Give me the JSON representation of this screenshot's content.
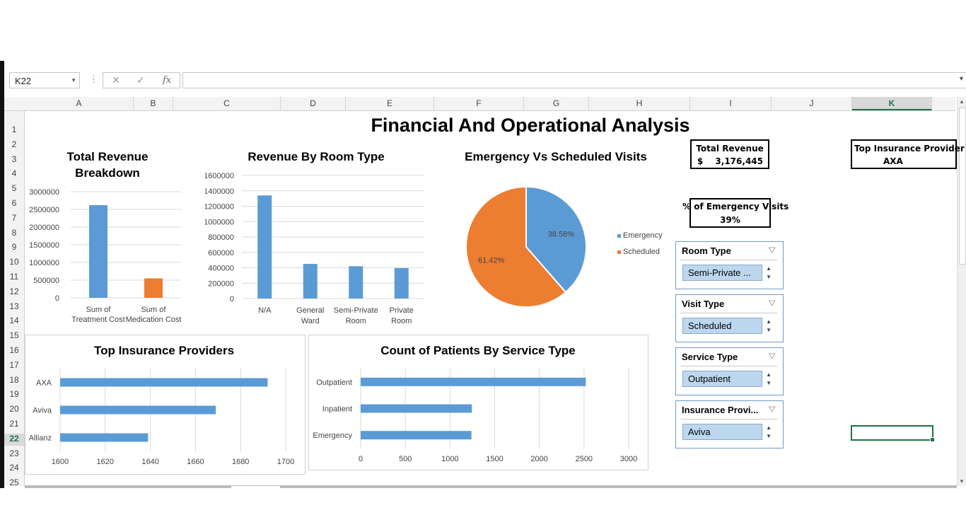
{
  "formula_bar": {
    "name_box": "K22",
    "separator": "⋮",
    "cancel_icon": "✕",
    "enter_icon": "✓",
    "fx_label": "fx",
    "formula_value": ""
  },
  "columns": [
    "A",
    "B",
    "C",
    "D",
    "E",
    "F",
    "G",
    "H",
    "I",
    "J",
    "K"
  ],
  "active_column": "K",
  "rows": [
    "1",
    "2",
    "3",
    "4",
    "5",
    "6",
    "7",
    "8",
    "9",
    "10",
    "11",
    "12",
    "13",
    "14",
    "15",
    "16",
    "17",
    "18",
    "19",
    "20",
    "21",
    "22",
    "23",
    "24",
    "25"
  ],
  "active_row": "22",
  "dashboard": {
    "title": "Financial And Operational Analysis"
  },
  "kpis": {
    "total_revenue_label": "Total Revenue",
    "total_revenue_currency": "$",
    "total_revenue_value": "3,176,445",
    "top_insurance_label": "Top Insurance Provider",
    "top_insurance_value": "AXA",
    "emergency_pct_label": "% of Emergency Visits",
    "emergency_pct_value": "39%"
  },
  "slicers": [
    {
      "title": "Room Type",
      "selected": "Semi-Private ..."
    },
    {
      "title": "Visit Type",
      "selected": "Scheduled"
    },
    {
      "title": "Service Type",
      "selected": "Outpatient"
    },
    {
      "title": "Insurance Provi...",
      "selected": "Aviva"
    }
  ],
  "colors": {
    "blue": "#5b9bd5",
    "orange": "#ed7d31",
    "selection_green": "#217346"
  },
  "chart_data": [
    {
      "type": "bar",
      "title_lines": [
        "Total Revenue",
        "Breakdown"
      ],
      "categories": [
        [
          "Sum of",
          "Treatment Cost"
        ],
        [
          "Sum of",
          "Medication Cost"
        ]
      ],
      "values": [
        2620000,
        550000
      ],
      "bar_colors": [
        "#5b9bd5",
        "#ed7d31"
      ],
      "ylim": [
        0,
        3000000
      ],
      "yticks": [
        "3000000",
        "2500000",
        "2000000",
        "1500000",
        "1000000",
        "500000",
        "0"
      ],
      "grid": true
    },
    {
      "type": "bar",
      "title": "Revenue By Room Type",
      "categories": [
        [
          "N/A"
        ],
        [
          "General",
          "Ward"
        ],
        [
          "Semi-Private",
          "Room"
        ],
        [
          "Private",
          "Room"
        ]
      ],
      "values": [
        1340000,
        450000,
        420000,
        395000
      ],
      "ylim": [
        0,
        1600000
      ],
      "yticks": [
        "1600000",
        "1400000",
        "1200000",
        "1000000",
        "800000",
        "600000",
        "400000",
        "200000",
        "0"
      ],
      "grid": true
    },
    {
      "type": "pie",
      "title": "Emergency Vs Scheduled Visits",
      "slices": [
        {
          "label": "Emergency",
          "value": 38.58,
          "text": "38.58%",
          "color": "#5b9bd5"
        },
        {
          "label": "Scheduled",
          "value": 61.42,
          "text": "61.42%",
          "color": "#ed7d31"
        }
      ],
      "legend": "right"
    },
    {
      "type": "bar",
      "orientation": "horizontal",
      "title": "Top Insurance Providers",
      "categories": [
        "AXA",
        "Aviva",
        "Allianz"
      ],
      "values": [
        1692,
        1669,
        1639
      ],
      "xlim": [
        1600,
        1700
      ],
      "xticks": [
        "1600",
        "1620",
        "1640",
        "1660",
        "1680",
        "1700"
      ],
      "grid": true
    },
    {
      "type": "bar",
      "orientation": "horizontal",
      "title": "Count of Patients By Service Type",
      "categories": [
        "Outpatient",
        "Inpatient",
        "Emergency"
      ],
      "values": [
        2520,
        1245,
        1240
      ],
      "xlim": [
        0,
        3000
      ],
      "xticks": [
        "0",
        "500",
        "1000",
        "1500",
        "2000",
        "2500",
        "3000"
      ],
      "grid": true
    }
  ]
}
